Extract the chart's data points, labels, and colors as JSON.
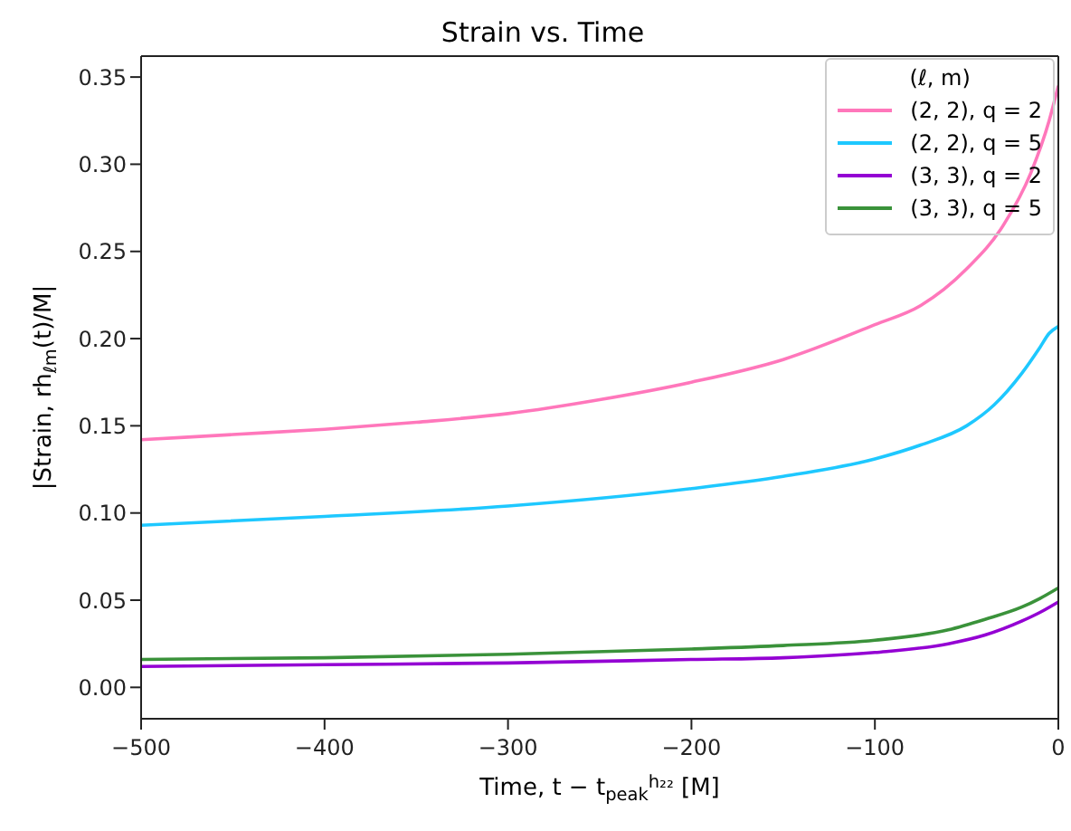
{
  "chart_data": {
    "type": "line",
    "title": "Strain vs. Time",
    "xlabel": "Time, t − t$_{peak}$$^{h₂₂}$ [M]",
    "ylabel": "|Strain, rh$_{ℓm}$(t)/M|",
    "legend_title": "(ℓ, m)",
    "legend": "top right",
    "grid": false,
    "marker": "none",
    "line_style": "solid",
    "xlim": [
      -500,
      0
    ],
    "xticks": [
      {
        "value": -500,
        "label": "−500"
      },
      {
        "value": -400,
        "label": "−400"
      },
      {
        "value": -300,
        "label": "−300"
      },
      {
        "value": -200,
        "label": "−200"
      },
      {
        "value": -100,
        "label": "−100"
      },
      0
    ],
    "ylim": [
      -0.018,
      0.362
    ],
    "yticks": [
      {
        "value": 0,
        "label": "0.00"
      },
      {
        "value": 0.05,
        "label": "0.05"
      },
      {
        "value": 0.1,
        "label": "0.10"
      },
      {
        "value": 0.15,
        "label": "0.15"
      },
      {
        "value": 0.2,
        "label": "0.20"
      },
      {
        "value": 0.25,
        "label": "0.25"
      },
      {
        "value": 0.3,
        "label": "0.30"
      },
      {
        "value": 0.35,
        "label": "0.35"
      }
    ],
    "series": [
      {
        "name": "(2, 2), q = 2",
        "color": "#ff77bb",
        "x": [
          -500,
          -450,
          -400,
          -350,
          -300,
          -250,
          -200,
          -150,
          -100,
          -75,
          -50,
          -30,
          -15,
          -5,
          0
        ],
        "values": [
          0.142,
          0.145,
          0.148,
          0.152,
          0.157,
          0.165,
          0.175,
          0.188,
          0.208,
          0.219,
          0.24,
          0.265,
          0.295,
          0.325,
          0.345
        ]
      },
      {
        "name": "(2, 2), q = 5",
        "color": "#1ec8ff",
        "x": [
          -500,
          -400,
          -300,
          -200,
          -150,
          -100,
          -75,
          -50,
          -35,
          -20,
          -10,
          -5,
          0
        ],
        "values": [
          0.093,
          0.098,
          0.104,
          0.114,
          0.121,
          0.131,
          0.139,
          0.15,
          0.162,
          0.18,
          0.195,
          0.203,
          0.207
        ]
      },
      {
        "name": "(3, 3), q = 2",
        "color": "#9400d3",
        "x": [
          -500,
          -400,
          -300,
          -200,
          -150,
          -100,
          -60,
          -40,
          -20,
          -10,
          0
        ],
        "values": [
          0.012,
          0.013,
          0.014,
          0.016,
          0.017,
          0.02,
          0.025,
          0.03,
          0.038,
          0.043,
          0.049
        ]
      },
      {
        "name": "(3, 3), q = 5",
        "color": "#3a923a",
        "x": [
          -500,
          -400,
          -300,
          -200,
          -150,
          -100,
          -60,
          -40,
          -20,
          -10,
          0
        ],
        "values": [
          0.016,
          0.017,
          0.019,
          0.022,
          0.024,
          0.027,
          0.033,
          0.039,
          0.046,
          0.051,
          0.057
        ]
      }
    ]
  }
}
